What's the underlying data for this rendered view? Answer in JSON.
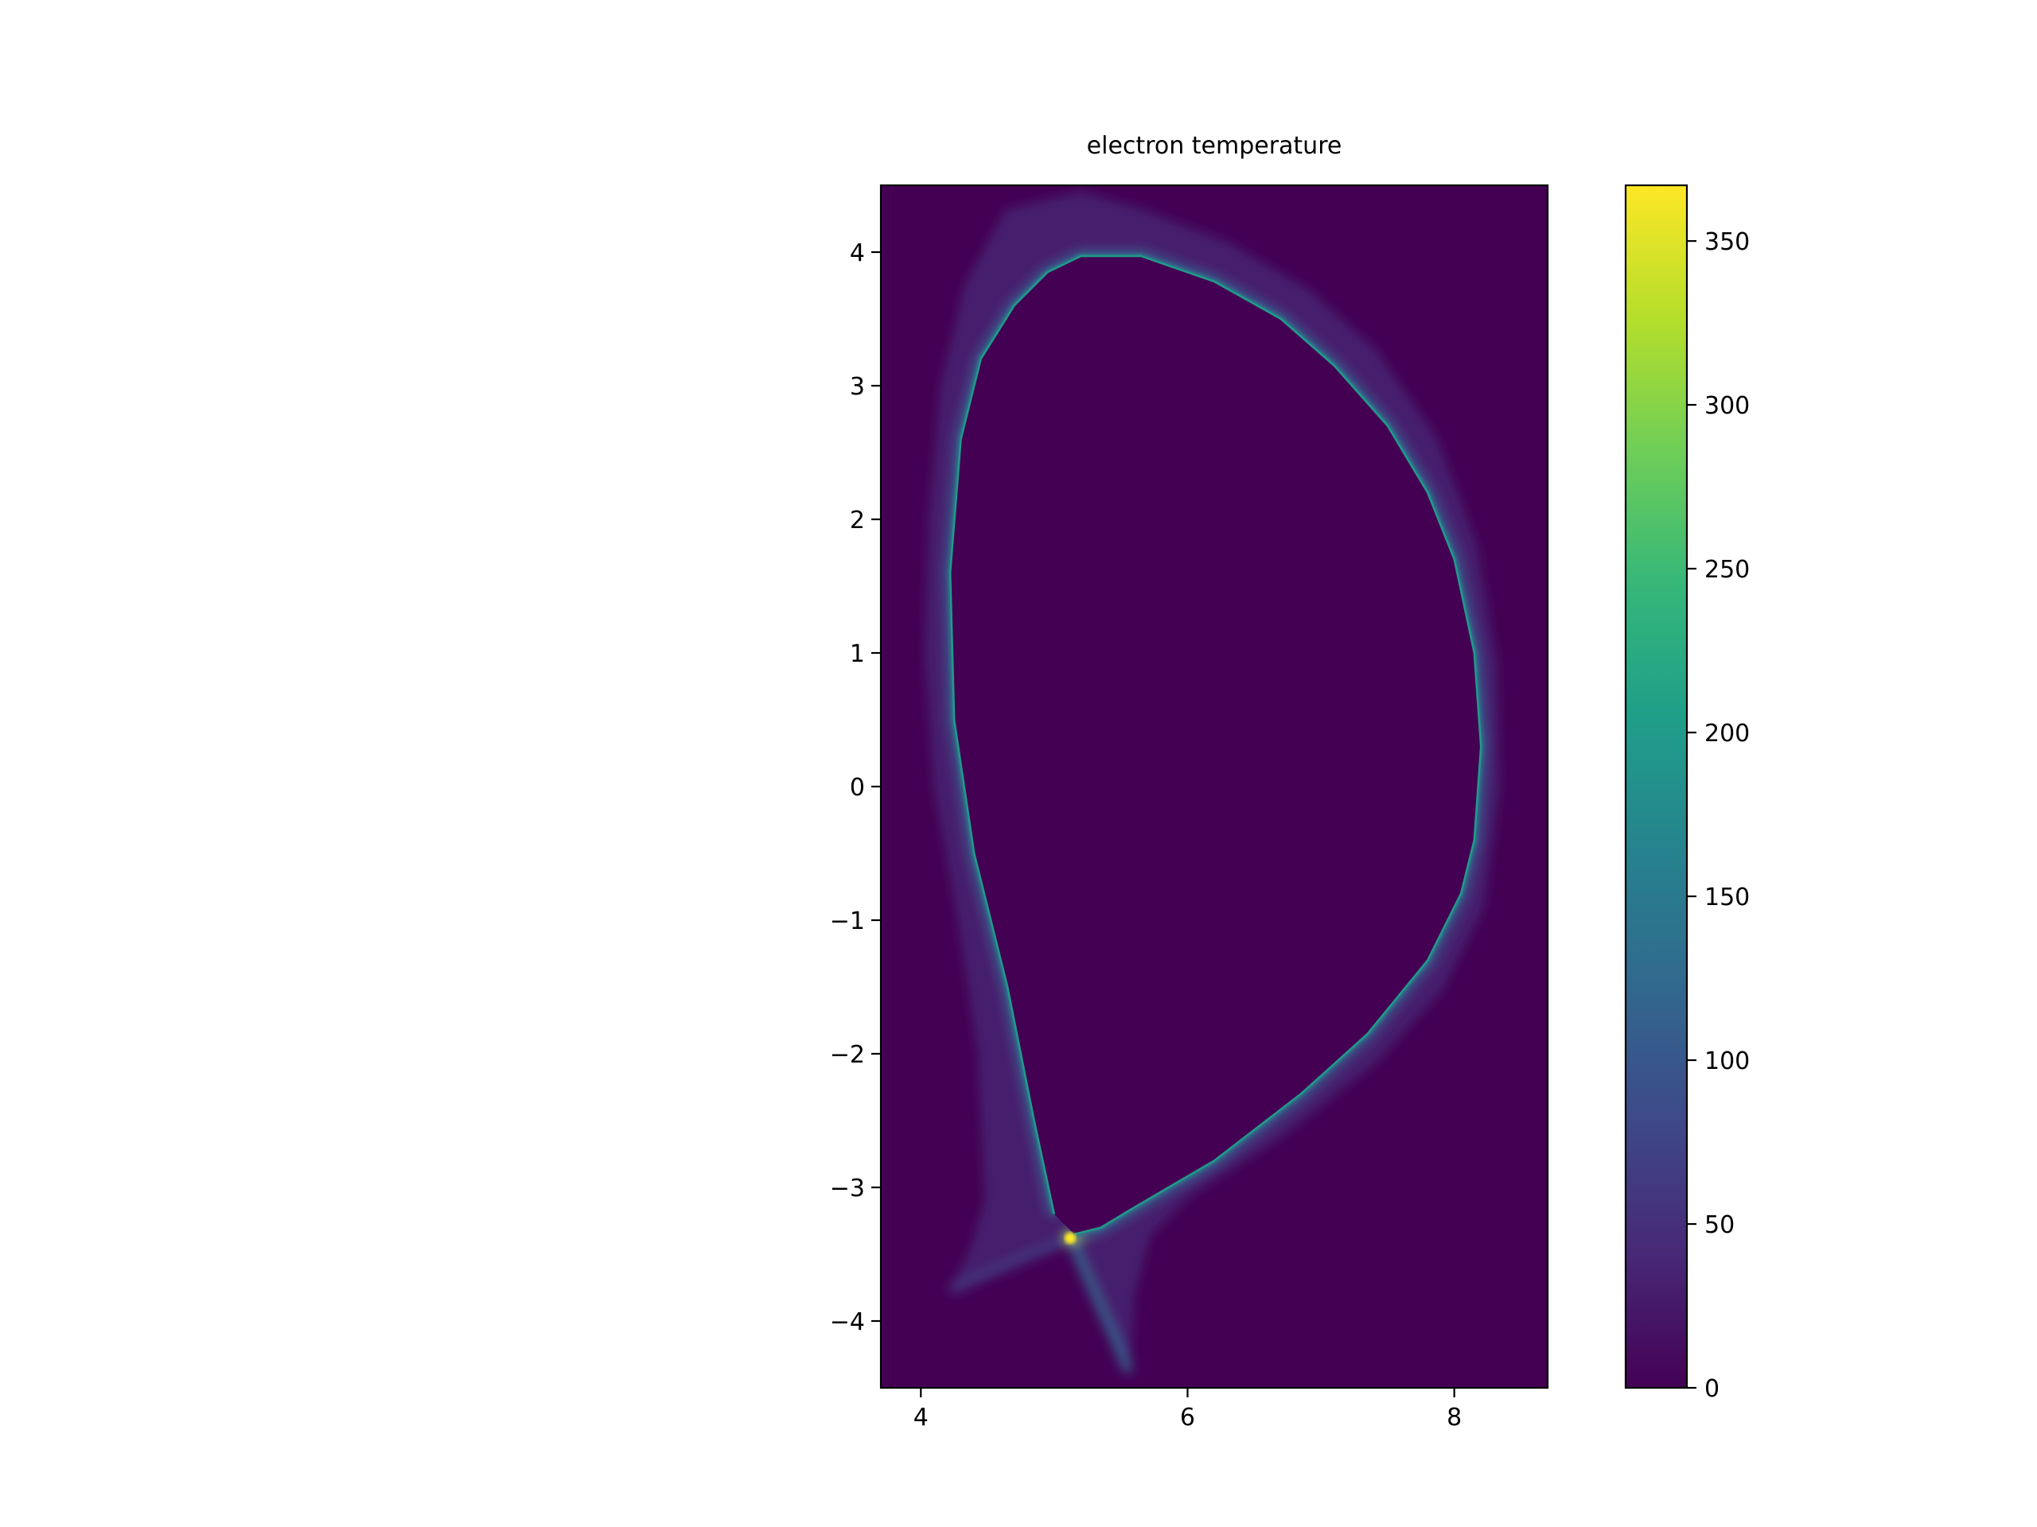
{
  "chart_data": {
    "type": "heatmap",
    "title": "electron temperature",
    "xlabel": "",
    "ylabel": "",
    "xlim": [
      3.7,
      8.7
    ],
    "ylim": [
      -4.5,
      4.5
    ],
    "x_ticks": [
      {
        "value": 4,
        "label": "4"
      },
      {
        "value": 6,
        "label": "6"
      },
      {
        "value": 8,
        "label": "8"
      }
    ],
    "y_ticks": [
      {
        "value": 4,
        "label": "4"
      },
      {
        "value": 3,
        "label": "3"
      },
      {
        "value": 2,
        "label": "2"
      },
      {
        "value": 1,
        "label": "1"
      },
      {
        "value": 0,
        "label": "0"
      },
      {
        "value": -1,
        "label": "−1"
      },
      {
        "value": -2,
        "label": "−2"
      },
      {
        "value": -3,
        "label": "−3"
      },
      {
        "value": -4,
        "label": "−4"
      }
    ],
    "background_value": 0,
    "colorbar": {
      "colormap": "viridis",
      "range": [
        0,
        367
      ],
      "ticks": [
        {
          "value": 0,
          "label": "0"
        },
        {
          "value": 50,
          "label": "50"
        },
        {
          "value": 100,
          "label": "100"
        },
        {
          "value": 150,
          "label": "150"
        },
        {
          "value": 200,
          "label": "200"
        },
        {
          "value": 250,
          "label": "250"
        },
        {
          "value": 300,
          "label": "300"
        },
        {
          "value": 350,
          "label": "350"
        }
      ],
      "stops": [
        "#440154",
        "#482878",
        "#3e4989",
        "#31688e",
        "#26828e",
        "#1f9e89",
        "#35b779",
        "#6ece58",
        "#b5de2b",
        "#fde725"
      ]
    },
    "separatrix": {
      "value": 200,
      "points": [
        [
          5.0,
          -3.2
        ],
        [
          4.85,
          -2.5
        ],
        [
          4.65,
          -1.5
        ],
        [
          4.4,
          -0.5
        ],
        [
          4.25,
          0.5
        ],
        [
          4.22,
          1.6
        ],
        [
          4.3,
          2.6
        ],
        [
          4.45,
          3.2
        ],
        [
          4.7,
          3.6
        ],
        [
          4.95,
          3.85
        ],
        [
          5.2,
          3.97
        ],
        [
          5.65,
          3.97
        ],
        [
          6.2,
          3.78
        ],
        [
          6.7,
          3.5
        ],
        [
          7.1,
          3.15
        ],
        [
          7.5,
          2.7
        ],
        [
          7.8,
          2.2
        ],
        [
          8.0,
          1.7
        ],
        [
          8.15,
          1.0
        ],
        [
          8.2,
          0.3
        ],
        [
          8.15,
          -0.4
        ],
        [
          8.05,
          -0.8
        ],
        [
          7.8,
          -1.3
        ],
        [
          7.35,
          -1.85
        ],
        [
          6.85,
          -2.3
        ],
        [
          6.2,
          -2.8
        ],
        [
          5.6,
          -3.15
        ],
        [
          5.35,
          -3.3
        ],
        [
          5.15,
          -3.35
        ]
      ]
    },
    "sol_outer_boundary": {
      "value": 40,
      "points": [
        [
          4.25,
          -3.75
        ],
        [
          4.4,
          -3.45
        ],
        [
          4.5,
          -3.1
        ],
        [
          4.45,
          -2.0
        ],
        [
          4.3,
          -1.0
        ],
        [
          4.12,
          0.0
        ],
        [
          4.05,
          1.0
        ],
        [
          4.08,
          2.0
        ],
        [
          4.17,
          3.0
        ],
        [
          4.35,
          3.75
        ],
        [
          4.65,
          4.3
        ],
        [
          5.2,
          4.43
        ],
        [
          5.65,
          4.3
        ],
        [
          6.3,
          4.05
        ],
        [
          6.9,
          3.7
        ],
        [
          7.4,
          3.25
        ],
        [
          7.85,
          2.6
        ],
        [
          8.15,
          1.8
        ],
        [
          8.3,
          0.9
        ],
        [
          8.32,
          0.0
        ],
        [
          8.2,
          -0.9
        ],
        [
          7.9,
          -1.5
        ],
        [
          7.4,
          -2.05
        ],
        [
          6.7,
          -2.6
        ],
        [
          6.0,
          -3.05
        ],
        [
          5.7,
          -3.35
        ],
        [
          5.58,
          -3.8
        ],
        [
          5.55,
          -4.35
        ],
        [
          5.35,
          -3.9
        ],
        [
          5.15,
          -3.4
        ]
      ]
    },
    "x_point": {
      "x": 5.12,
      "y": -3.38,
      "value": 367
    },
    "divertor_legs": [
      {
        "points": [
          [
            5.12,
            -3.38
          ],
          [
            4.25,
            -3.75
          ]
        ],
        "value": 60
      },
      {
        "points": [
          [
            5.12,
            -3.38
          ],
          [
            5.55,
            -4.35
          ]
        ],
        "value": 110
      },
      {
        "points": [
          [
            5.12,
            -3.38
          ],
          [
            5.35,
            -3.3
          ]
        ],
        "value": 330
      }
    ]
  }
}
